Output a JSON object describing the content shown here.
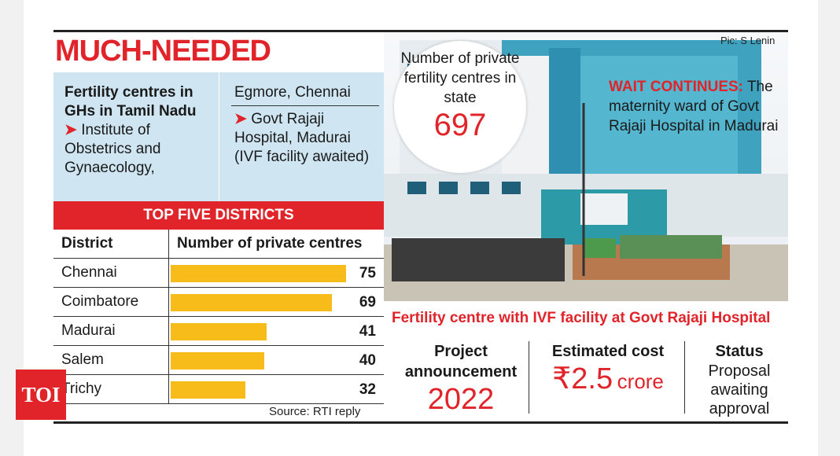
{
  "headline": "MUCH-NEEDED",
  "fertility_box": {
    "title": "Fertility centres in GHs in Tamil Nadu",
    "item1_line1": "Institute of Obstetrics and Gynaecology,",
    "item1_line2": "Egmore, Chennai",
    "item2": "Govt Rajaji Hospital, Madurai (IVF facility awaited)"
  },
  "photo_credit": "Pic: S Lenin",
  "circle": {
    "label": "Number of private fertility centres in state",
    "value": "697"
  },
  "wait_caption": {
    "keyword": "WAIT CONTINUES:",
    "text": "The maternity ward of Govt Rajaji Hospital in Madurai"
  },
  "chart_data": {
    "type": "bar",
    "title": "TOP FIVE DISTRICTS",
    "xlabel": "District",
    "ylabel": "Number of private centres",
    "categories": [
      "Chennai",
      "Coimbatore",
      "Madurai",
      "Salem",
      "Trichy"
    ],
    "values": [
      75,
      69,
      41,
      40,
      32
    ],
    "ylim": [
      0,
      82
    ],
    "source": "Source: RTI reply",
    "colors": {
      "bar": "#f8bc1a"
    }
  },
  "ivf": {
    "title": "Fertility centre with IVF facility at Govt Rajaji Hospital",
    "project_label": "Project announcement",
    "project_year": "2022",
    "cost_label": "Estimated cost",
    "cost_amount": "₹2.5",
    "cost_unit": "crore",
    "status_label": "Status",
    "status_value": "Proposal awaiting approval"
  },
  "logo": "TOI"
}
